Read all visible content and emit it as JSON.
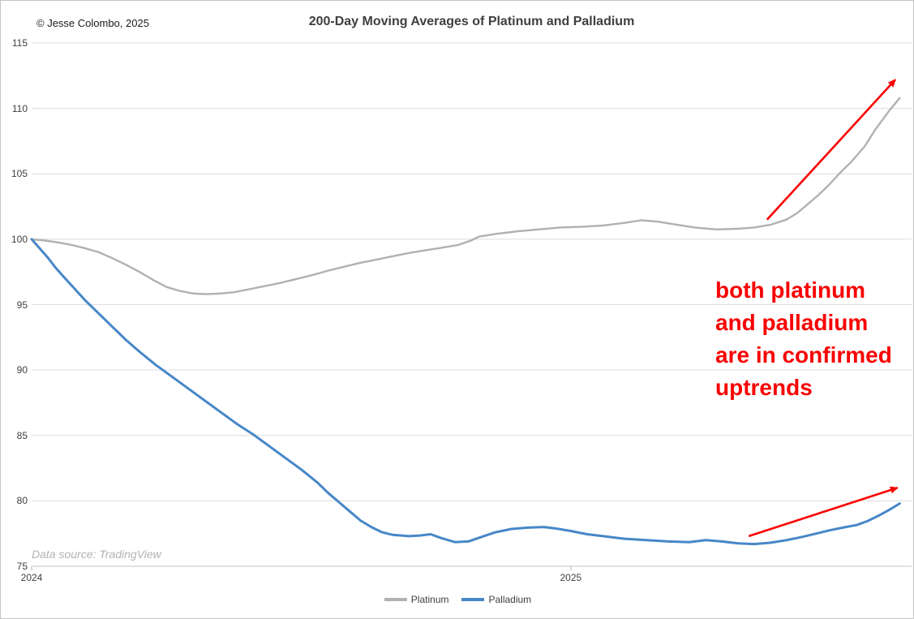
{
  "header": {
    "copyright": "© Jesse Colombo, 2025"
  },
  "footer": {
    "source_note": "Data source: TradingView"
  },
  "chart_data": {
    "type": "line",
    "title": "200-Day Moving Averages of Platinum and Palladium",
    "x_axis": {
      "range": [
        2024.0,
        2025.632
      ],
      "ticks": [
        {
          "label": "2024",
          "value": 2024.0
        },
        {
          "label": "2025",
          "value": 2025.0
        }
      ]
    },
    "y_axis": {
      "range": [
        75,
        115
      ],
      "tick_step": 5,
      "ticks": [
        75,
        80,
        85,
        90,
        95,
        100,
        105,
        110,
        115
      ]
    },
    "grid": "horizontal-only",
    "legend_position": "bottom-center",
    "series": [
      {
        "name": "Platinum",
        "color": "#b1b1b1",
        "width": 2.4,
        "points": [
          [
            2024.0,
            100.0
          ],
          [
            2024.025,
            99.9
          ],
          [
            2024.05,
            99.75
          ],
          [
            2024.075,
            99.55
          ],
          [
            2024.1,
            99.3
          ],
          [
            2024.125,
            99.0
          ],
          [
            2024.15,
            98.55
          ],
          [
            2024.175,
            98.05
          ],
          [
            2024.2,
            97.5
          ],
          [
            2024.225,
            96.9
          ],
          [
            2024.25,
            96.35
          ],
          [
            2024.275,
            96.05
          ],
          [
            2024.3,
            95.85
          ],
          [
            2024.325,
            95.8
          ],
          [
            2024.35,
            95.85
          ],
          [
            2024.375,
            95.95
          ],
          [
            2024.4,
            96.15
          ],
          [
            2024.43,
            96.4
          ],
          [
            2024.46,
            96.65
          ],
          [
            2024.49,
            96.95
          ],
          [
            2024.52,
            97.25
          ],
          [
            2024.55,
            97.6
          ],
          [
            2024.58,
            97.9
          ],
          [
            2024.61,
            98.2
          ],
          [
            2024.64,
            98.45
          ],
          [
            2024.67,
            98.7
          ],
          [
            2024.7,
            98.95
          ],
          [
            2024.73,
            99.15
          ],
          [
            2024.76,
            99.35
          ],
          [
            2024.79,
            99.55
          ],
          [
            2024.815,
            99.9
          ],
          [
            2024.83,
            100.2
          ],
          [
            2024.86,
            100.4
          ],
          [
            2024.9,
            100.6
          ],
          [
            2024.94,
            100.75
          ],
          [
            2024.98,
            100.9
          ],
          [
            2025.02,
            100.95
          ],
          [
            2025.06,
            101.05
          ],
          [
            2025.1,
            101.25
          ],
          [
            2025.13,
            101.45
          ],
          [
            2025.16,
            101.35
          ],
          [
            2025.19,
            101.15
          ],
          [
            2025.23,
            100.9
          ],
          [
            2025.27,
            100.75
          ],
          [
            2025.31,
            100.8
          ],
          [
            2025.34,
            100.9
          ],
          [
            2025.37,
            101.1
          ],
          [
            2025.4,
            101.5
          ],
          [
            2025.42,
            102.0
          ],
          [
            2025.44,
            102.7
          ],
          [
            2025.46,
            103.4
          ],
          [
            2025.48,
            104.2
          ],
          [
            2025.5,
            105.1
          ],
          [
            2025.52,
            105.9
          ],
          [
            2025.545,
            107.1
          ],
          [
            2025.565,
            108.4
          ],
          [
            2025.59,
            109.8
          ],
          [
            2025.61,
            110.8
          ]
        ]
      },
      {
        "name": "Palladium",
        "color": "#4787c7",
        "width": 3,
        "points": [
          [
            2024.0,
            100.0
          ],
          [
            2024.015,
            99.3
          ],
          [
            2024.03,
            98.6
          ],
          [
            2024.045,
            97.8
          ],
          [
            2024.06,
            97.1
          ],
          [
            2024.08,
            96.2
          ],
          [
            2024.1,
            95.3
          ],
          [
            2024.125,
            94.3
          ],
          [
            2024.15,
            93.3
          ],
          [
            2024.175,
            92.3
          ],
          [
            2024.2,
            91.4
          ],
          [
            2024.23,
            90.4
          ],
          [
            2024.26,
            89.5
          ],
          [
            2024.29,
            88.6
          ],
          [
            2024.32,
            87.7
          ],
          [
            2024.35,
            86.8
          ],
          [
            2024.38,
            85.9
          ],
          [
            2024.41,
            85.1
          ],
          [
            2024.44,
            84.2
          ],
          [
            2024.47,
            83.3
          ],
          [
            2024.5,
            82.4
          ],
          [
            2024.53,
            81.4
          ],
          [
            2024.55,
            80.6
          ],
          [
            2024.57,
            79.9
          ],
          [
            2024.59,
            79.2
          ],
          [
            2024.61,
            78.5
          ],
          [
            2024.63,
            78.0
          ],
          [
            2024.65,
            77.6
          ],
          [
            2024.67,
            77.4
          ],
          [
            2024.7,
            77.3
          ],
          [
            2024.72,
            77.35
          ],
          [
            2024.74,
            77.45
          ],
          [
            2024.76,
            77.15
          ],
          [
            2024.785,
            76.85
          ],
          [
            2024.81,
            76.9
          ],
          [
            2024.835,
            77.25
          ],
          [
            2024.86,
            77.6
          ],
          [
            2024.89,
            77.85
          ],
          [
            2024.92,
            77.95
          ],
          [
            2024.95,
            78.0
          ],
          [
            2024.97,
            77.9
          ],
          [
            2025.0,
            77.7
          ],
          [
            2025.03,
            77.45
          ],
          [
            2025.06,
            77.3
          ],
          [
            2025.1,
            77.1
          ],
          [
            2025.14,
            77.0
          ],
          [
            2025.18,
            76.9
          ],
          [
            2025.22,
            76.85
          ],
          [
            2025.25,
            77.0
          ],
          [
            2025.28,
            76.9
          ],
          [
            2025.31,
            76.75
          ],
          [
            2025.34,
            76.7
          ],
          [
            2025.37,
            76.8
          ],
          [
            2025.4,
            77.0
          ],
          [
            2025.43,
            77.25
          ],
          [
            2025.46,
            77.55
          ],
          [
            2025.48,
            77.75
          ],
          [
            2025.51,
            78.0
          ],
          [
            2025.53,
            78.15
          ],
          [
            2025.55,
            78.45
          ],
          [
            2025.57,
            78.85
          ],
          [
            2025.59,
            79.3
          ],
          [
            2025.61,
            79.8
          ]
        ]
      }
    ],
    "annotations": {
      "text": {
        "lines": [
          "both platinum",
          "and palladium",
          "are in confirmed",
          "uptrends"
        ],
        "color": "#f90303"
      },
      "arrows": [
        {
          "from": [
            2025.364,
            101.5
          ],
          "to": [
            2025.602,
            112.2
          ],
          "color": "#f90303"
        },
        {
          "from": [
            2025.33,
            77.3
          ],
          "to": [
            2025.606,
            81.0
          ],
          "color": "#f90303"
        }
      ]
    },
    "legend": [
      {
        "label": "Platinum",
        "color": "#b1b1b1"
      },
      {
        "label": "Palladium",
        "color": "#4787c7"
      }
    ],
    "colors": {
      "gridline": "#dcdcdc",
      "axis_line": "#c6c6c6",
      "tick_mark": "#b5b5b5"
    }
  }
}
